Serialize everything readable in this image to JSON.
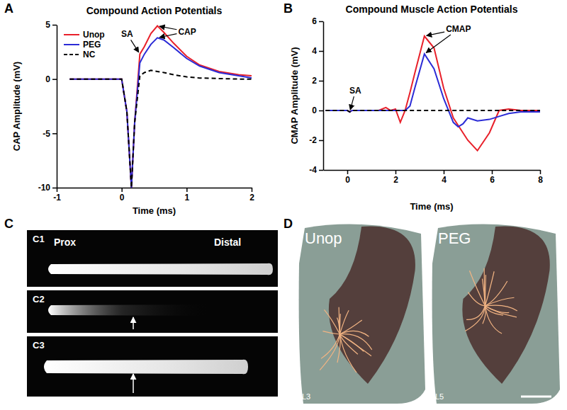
{
  "chart_data": [
    {
      "type": "line",
      "panel_label": "A",
      "title": "Compound Action Potentials",
      "x_label": "Time (ms)",
      "y_label": "CAP Amplitude (mV)",
      "xlim": [
        -1,
        2
      ],
      "xticks": [
        -1,
        0,
        1,
        2
      ],
      "ylim": [
        -10,
        5
      ],
      "yticks": [
        -10,
        -5,
        0,
        5
      ],
      "legend": "upper left",
      "x": [
        -0.8,
        0,
        0.08,
        0.15,
        0.2,
        0.28,
        0.35,
        0.45,
        0.55,
        0.65,
        0.8,
        1.0,
        1.2,
        1.5,
        1.8,
        2.0
      ],
      "series": [
        {
          "name": "Unop",
          "color": "#e8202a",
          "line_style": "solid",
          "values": [
            0,
            0,
            -3,
            -10,
            -4,
            2.3,
            3.0,
            4.2,
            4.9,
            4.3,
            3.3,
            2.1,
            1.3,
            0.7,
            0.4,
            0.3
          ]
        },
        {
          "name": "PEG",
          "color": "#2b2bd6",
          "line_style": "solid",
          "values": [
            0,
            0,
            -3,
            -10,
            -4,
            1.5,
            2.3,
            3.2,
            3.8,
            3.6,
            2.9,
            1.9,
            1.2,
            0.6,
            0.3,
            0.1
          ]
        },
        {
          "name": "NC",
          "color": "#000000",
          "line_style": "dashed",
          "values": [
            0,
            0,
            -3,
            -10,
            -4,
            0.3,
            0.6,
            0.8,
            0.7,
            0.6,
            0.4,
            0.2,
            0.1,
            0.05,
            0,
            0
          ]
        }
      ],
      "annotations": [
        {
          "text": "SA"
        },
        {
          "text": "CAP"
        }
      ]
    },
    {
      "type": "line",
      "panel_label": "B",
      "title": "Compound Muscle Action Potentials",
      "x_label": "Time (ms)",
      "y_label": "CMAP Amplitude (mV)",
      "xlim": [
        -1,
        8
      ],
      "xticks": [
        0,
        2,
        4,
        6,
        8
      ],
      "ylim": [
        -4,
        6
      ],
      "yticks": [
        -4,
        -2,
        0,
        2,
        4,
        6
      ],
      "x": [
        -0.9,
        0,
        0.1,
        0.2,
        1.3,
        1.6,
        1.8,
        2.0,
        2.2,
        2.4,
        2.6,
        2.8,
        3.2,
        3.6,
        4.0,
        4.4,
        4.6,
        4.8,
        5.0,
        5.4,
        5.9,
        6.3,
        6.7,
        7.2,
        8.0
      ],
      "series": [
        {
          "name": "Unop",
          "color": "#e8202a",
          "line_style": "solid",
          "values": [
            0,
            0,
            -0.1,
            0,
            0,
            0.2,
            0,
            0.1,
            -0.8,
            0,
            1.2,
            2.5,
            5.0,
            4.2,
            1.5,
            -0.5,
            -1.0,
            -1.5,
            -2.0,
            -2.7,
            -1.5,
            0,
            0.1,
            0,
            0
          ]
        },
        {
          "name": "PEG",
          "color": "#2b2bd6",
          "line_style": "solid",
          "values": [
            0,
            0,
            -0.1,
            0,
            0,
            0,
            0,
            0,
            0,
            0,
            0.3,
            1.5,
            3.8,
            2.8,
            0.8,
            -0.8,
            -1.1,
            -0.9,
            -0.5,
            -0.7,
            -0.6,
            -0.4,
            -0.2,
            -0.1,
            -0.1
          ]
        },
        {
          "name": "NC",
          "color": "#000000",
          "line_style": "dashed",
          "values": [
            0,
            0,
            -0.1,
            0,
            0,
            0,
            0,
            0,
            0,
            0,
            0,
            0,
            0,
            0,
            0,
            0,
            0,
            0,
            0,
            0,
            0,
            0,
            0,
            0,
            0
          ]
        }
      ],
      "annotations": [
        {
          "text": "SA"
        },
        {
          "text": "CMAP"
        }
      ]
    }
  ],
  "image_panels": {
    "C": {
      "panel_label": "C",
      "images": [
        {
          "label": "C1",
          "proximal": "Prox",
          "distal": "Distal"
        },
        {
          "label": "C2"
        },
        {
          "label": "C3"
        }
      ]
    },
    "D": {
      "panel_label": "D",
      "images": [
        {
          "group": "Unop",
          "level": "L3"
        },
        {
          "group": "PEG",
          "level": "L5"
        }
      ]
    }
  }
}
